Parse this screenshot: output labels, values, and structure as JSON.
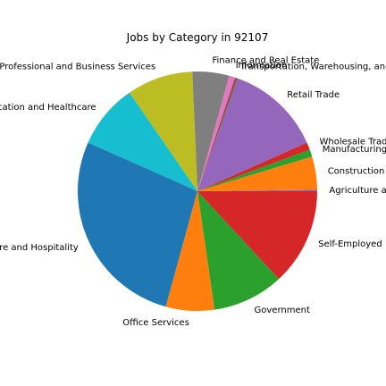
{
  "chart_data": {
    "type": "pie",
    "title": "Jobs by Category in 92107",
    "start_angle_deg": 0,
    "direction": "counterclockwise",
    "legend": "none",
    "slices": [
      {
        "label": "Agriculture and Mining",
        "value": 0.2,
        "color": "#9467bd"
      },
      {
        "label": "Construction",
        "value": 4.5,
        "color": "#ff7f0e"
      },
      {
        "label": "Manufacturing",
        "value": 1.0,
        "color": "#2ca02c"
      },
      {
        "label": "Wholesale Trade",
        "value": 1.0,
        "color": "#d62728"
      },
      {
        "label": "Retail Trade",
        "value": 13.0,
        "color": "#9467bd"
      },
      {
        "label": "Transportation, Warehousing, and Utilities",
        "value": 0.4,
        "color": "#8c564b"
      },
      {
        "label": "Information",
        "value": 0.8,
        "color": "#e377c2"
      },
      {
        "label": "Finance and Real Estate",
        "value": 5.0,
        "color": "#7f7f7f"
      },
      {
        "label": "Professional and Business Services",
        "value": 9.0,
        "color": "#bcbd22"
      },
      {
        "label": "Education and Healthcare",
        "value": 8.8,
        "color": "#17becf"
      },
      {
        "label": "Leisure and Hospitality",
        "value": 27.6,
        "color": "#1f77b4"
      },
      {
        "label": "Office Services",
        "value": 6.6,
        "color": "#ff7f0e"
      },
      {
        "label": "Government",
        "value": 9.7,
        "color": "#2ca02c"
      },
      {
        "label": "Self-Employed",
        "value": 13.2,
        "color": "#d62728"
      }
    ]
  }
}
